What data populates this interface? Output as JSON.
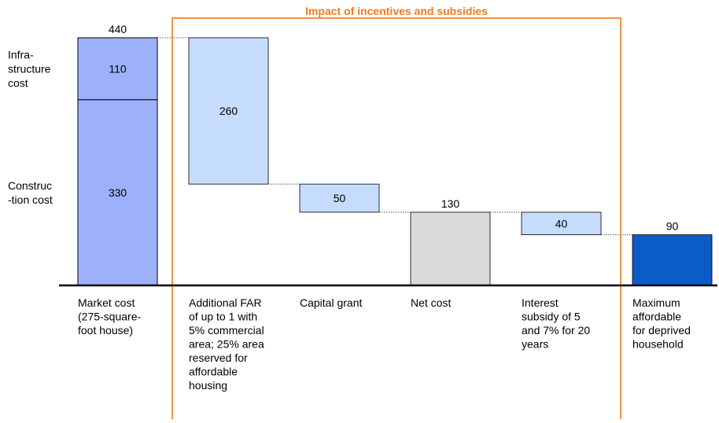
{
  "chart_data": {
    "type": "waterfall",
    "annotation": "Impact of incentives and subsidies",
    "categories": [
      "Market cost\n(275-square-\nfoot house)",
      "Additional FAR\nof up to 1 with\n5% commercial\narea; 25% area\nreserved for\naffordable\nhousing",
      "Capital grant",
      "Net cost",
      "Interest\nsubsidy of 5\nand 7% for 20\nyears",
      "Maximum\naffordable\nfor deprived\nhousehold"
    ],
    "values": [
      440,
      260,
      50,
      130,
      40,
      90
    ],
    "kinds": [
      "total",
      "decrease",
      "decrease",
      "total",
      "decrease",
      "total"
    ],
    "colors": [
      "#9db1fb",
      "#c5dcfc",
      "#c5dcfc",
      "#d9d9d9",
      "#c5dcfc",
      "#0b5cc6"
    ],
    "breakdown": {
      "names": [
        "Infra-\nstructure\ncost",
        "Construc\n-tion cost"
      ],
      "values": [
        110,
        330
      ]
    }
  }
}
